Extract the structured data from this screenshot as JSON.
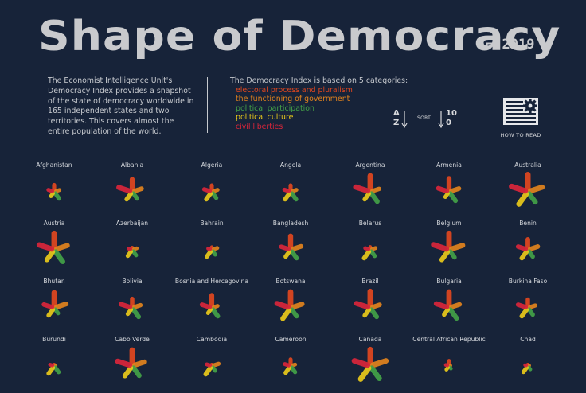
{
  "header": {
    "title": "Shape of Democracy",
    "year": "2019"
  },
  "intro": {
    "text": "The Economist Intelligence Unit's Democracy Index provides a snapshot of the state of democracy worldwide in 165 independent states and two territories. This covers almost the entire population of the world."
  },
  "categories": {
    "heading": "The Democracy Index is based on 5 categories:",
    "items": [
      {
        "label": "electoral process and pluralism",
        "color": "#e0471f"
      },
      {
        "label": "the functioning of government",
        "color": "#e0821d"
      },
      {
        "label": "political participation",
        "color": "#43a047"
      },
      {
        "label": "political culture",
        "color": "#e8c81a"
      },
      {
        "label": "civil liberties",
        "color": "#d8263a"
      }
    ]
  },
  "controls": {
    "sort_label": "SORT",
    "az_top": "A",
    "az_bottom": "Z",
    "num_top": "10",
    "num_bottom": "0",
    "how_to_read": "HOW TO READ"
  },
  "countries": [
    {
      "name": "Afghanistan",
      "scores": [
        3.4,
        2.6,
        4.4,
        2.5,
        2.9
      ]
    },
    {
      "name": "Albania",
      "scores": [
        7.0,
        5.4,
        4.4,
        5.0,
        8.0
      ]
    },
    {
      "name": "Algeria",
      "scores": [
        3.1,
        2.9,
        3.9,
        5.0,
        4.1
      ]
    },
    {
      "name": "Angola",
      "scores": [
        3.1,
        2.9,
        5.0,
        5.0,
        3.2
      ]
    },
    {
      "name": "Argentina",
      "scores": [
        9.2,
        5.0,
        6.7,
        5.0,
        8.8
      ]
    },
    {
      "name": "Armenia",
      "scores": [
        7.5,
        5.7,
        6.1,
        3.1,
        6.2
      ]
    },
    {
      "name": "Australia",
      "scores": [
        10.0,
        8.6,
        7.2,
        8.8,
        10.0
      ]
    },
    {
      "name": "Austria",
      "scores": [
        9.6,
        7.9,
        8.3,
        6.9,
        9.1
      ]
    },
    {
      "name": "Azerbaijan",
      "scores": [
        0.5,
        2.1,
        3.3,
        3.8,
        1.5
      ]
    },
    {
      "name": "Bahrain",
      "scores": [
        0.8,
        2.7,
        2.8,
        4.4,
        1.5
      ]
    },
    {
      "name": "Bangladesh",
      "scores": [
        7.8,
        6.1,
        5.6,
        4.4,
        5.3
      ]
    },
    {
      "name": "Belarus",
      "scores": [
        0.9,
        2.6,
        3.9,
        5.6,
        2.4
      ]
    },
    {
      "name": "Belgium",
      "scores": [
        9.6,
        8.2,
        5.0,
        6.9,
        9.4
      ]
    },
    {
      "name": "Benin",
      "scores": [
        5.7,
        5.7,
        4.4,
        5.6,
        5.6
      ]
    },
    {
      "name": "Bhutan",
      "scores": [
        8.8,
        7.1,
        3.3,
        5.0,
        5.9
      ]
    },
    {
      "name": "Bolivia",
      "scores": [
        4.8,
        4.6,
        6.1,
        3.8,
        6.5
      ]
    },
    {
      "name": "Bosnia and Hercegovina",
      "scores": [
        7.0,
        2.9,
        5.6,
        3.1,
        5.6
      ]
    },
    {
      "name": "Botswana",
      "scores": [
        9.2,
        6.8,
        5.6,
        7.5,
        8.2
      ]
    },
    {
      "name": "Brazil",
      "scores": [
        9.6,
        5.4,
        6.1,
        5.0,
        8.2
      ]
    },
    {
      "name": "Bulgaria",
      "scores": [
        9.2,
        6.1,
        7.2,
        4.4,
        7.6
      ]
    },
    {
      "name": "Burkina Faso",
      "scores": [
        4.4,
        4.0,
        4.4,
        5.6,
        5.6
      ]
    },
    {
      "name": "Burundi",
      "scores": [
        0.0,
        0.1,
        3.9,
        5.0,
        1.8
      ]
    },
    {
      "name": "Cabo Verde",
      "scores": [
        9.2,
        7.4,
        6.7,
        6.9,
        8.8
      ]
    },
    {
      "name": "Cambodia",
      "scores": [
        0.0,
        3.6,
        2.8,
        5.6,
        2.4
      ]
    },
    {
      "name": "Cameroon",
      "scores": [
        3.2,
        2.1,
        3.9,
        4.4,
        2.9
      ]
    },
    {
      "name": "Canada",
      "scores": [
        9.6,
        9.6,
        8.9,
        9.4,
        9.7
      ]
    },
    {
      "name": "Central African Republic",
      "scores": [
        2.3,
        0.0,
        1.1,
        1.9,
        1.2
      ]
    },
    {
      "name": "Chad",
      "scores": [
        0.0,
        0.0,
        1.7,
        3.8,
        0.9
      ]
    }
  ]
}
